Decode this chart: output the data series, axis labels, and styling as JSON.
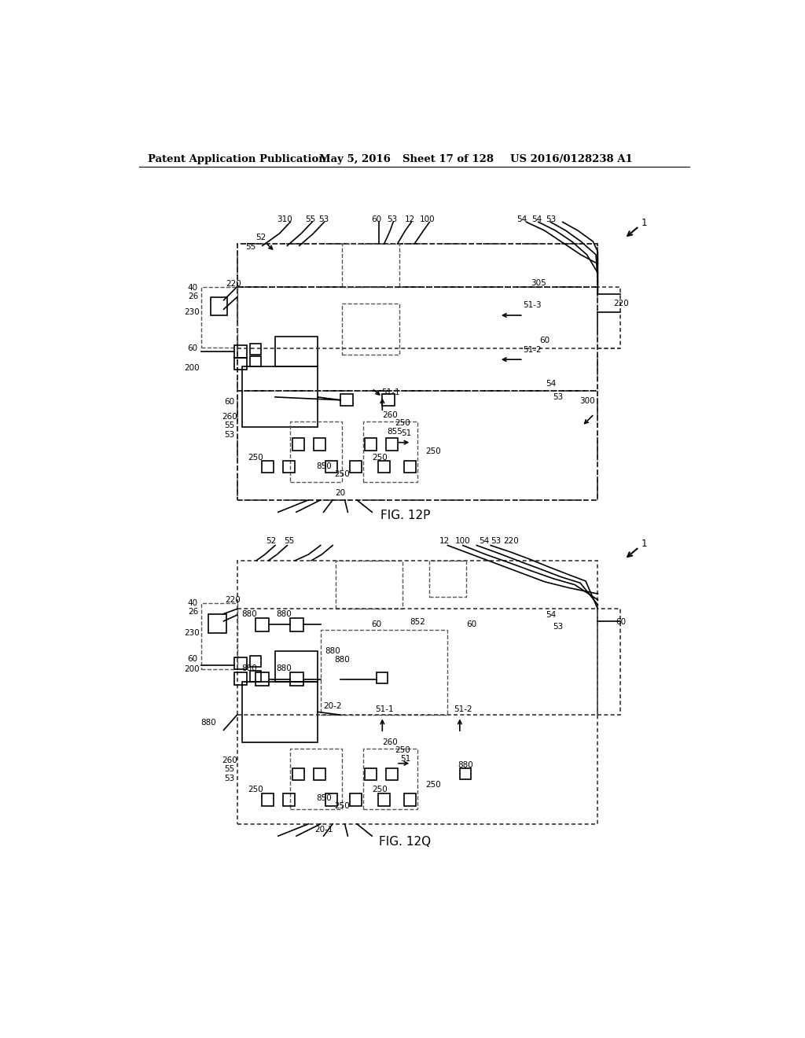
{
  "title_line1": "Patent Application Publication",
  "title_line2": "May 5, 2016",
  "title_line3": "Sheet 17 of 128",
  "title_line4": "US 2016/0128238 A1",
  "fig1_label": "FIG. 12P",
  "fig2_label": "FIG. 12Q",
  "bg_color": "#ffffff",
  "line_color": "#000000"
}
